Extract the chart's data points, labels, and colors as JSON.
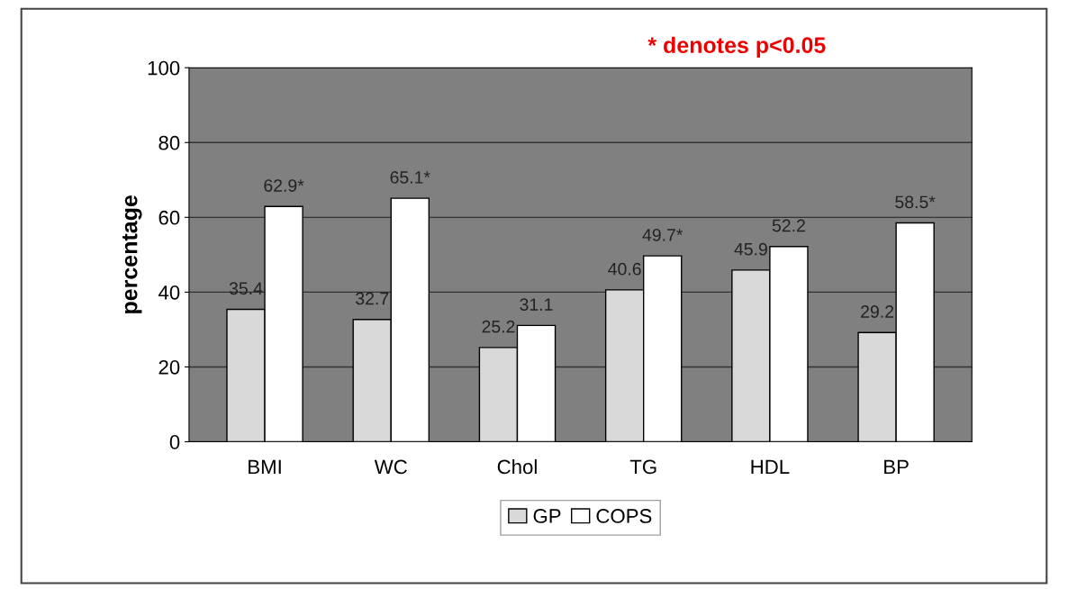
{
  "chart_data": {
    "type": "bar",
    "ylabel": "percentage",
    "categories": [
      "BMI",
      "WC",
      "Chol",
      "TG",
      "HDL",
      "BP"
    ],
    "series": [
      {
        "name": "GP",
        "color": "#d9d9d9",
        "values": [
          35.4,
          32.7,
          25.2,
          40.6,
          45.9,
          29.2
        ],
        "value_labels": [
          "35.4",
          "32.7",
          "25.2",
          "40.6",
          "45.9",
          "29.2"
        ]
      },
      {
        "name": "COPS",
        "color": "#ffffff",
        "values": [
          62.9,
          65.1,
          31.1,
          49.7,
          52.2,
          58.5
        ],
        "value_labels": [
          "62.9*",
          "65.1*",
          "31.1",
          "49.7*",
          "52.2",
          "58.5*"
        ]
      }
    ],
    "ylim": [
      0,
      100
    ],
    "yticks": [
      0,
      20,
      40,
      60,
      80,
      100
    ],
    "grid": "y",
    "legend": "bottom",
    "annotations": [
      "* denotes p<0.05"
    ]
  }
}
